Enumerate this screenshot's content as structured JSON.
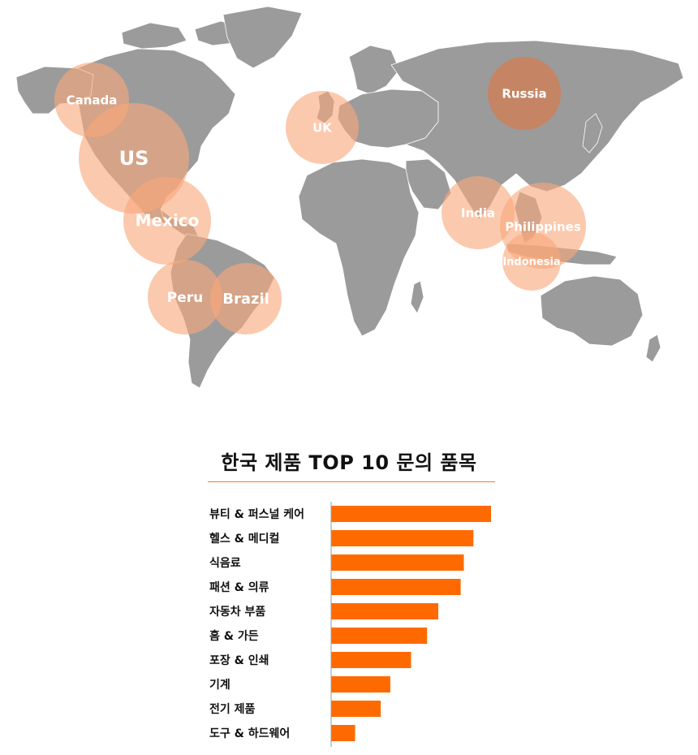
{
  "map": {
    "land_color": "#9b9b9b",
    "bubble_color": "#f8a87a",
    "countries": [
      {
        "id": "canada",
        "label": "Canada"
      },
      {
        "id": "us",
        "label": "US"
      },
      {
        "id": "mexico",
        "label": "Mexico"
      },
      {
        "id": "peru",
        "label": "Peru"
      },
      {
        "id": "brazil",
        "label": "Brazil"
      },
      {
        "id": "uk",
        "label": "UK"
      },
      {
        "id": "russia",
        "label": "Russia"
      },
      {
        "id": "india",
        "label": "India"
      },
      {
        "id": "philippines",
        "label": "Philippines"
      },
      {
        "id": "indonesia",
        "label": "Indonesia"
      }
    ]
  },
  "chart_data": {
    "type": "bar",
    "orientation": "horizontal",
    "title": "한국 제품 TOP 10 문의 품목",
    "categories": [
      "뷰티 & 퍼스널 케어",
      "헬스 & 메디컬",
      "식음료",
      "패션 & 의류",
      "자동차 부품",
      "홈 & 가든",
      "포장 & 인쇄",
      "기계",
      "전기 제품",
      "도구 & 하드웨어"
    ],
    "values": [
      100,
      89,
      83,
      81,
      67,
      60,
      50,
      37,
      31,
      15
    ],
    "xlim": [
      0,
      100
    ],
    "grid": false,
    "bar_color": "#ff6a00",
    "accent_color": "#f27a2e"
  }
}
